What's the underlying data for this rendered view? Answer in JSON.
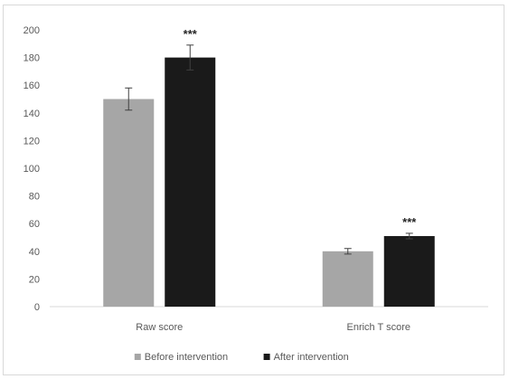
{
  "chart_data": {
    "type": "bar",
    "categories": [
      "Raw score",
      "Enrich T score"
    ],
    "series": [
      {
        "name": "Before intervention",
        "color": "#a6a6a6",
        "values": [
          150,
          40
        ],
        "errors": [
          8,
          2
        ]
      },
      {
        "name": "After intervention",
        "color": "#1a1a1a",
        "values": [
          180,
          51
        ],
        "errors": [
          9,
          2
        ]
      }
    ],
    "annotations": [
      {
        "category_index": 0,
        "series_index": 1,
        "text": "***"
      },
      {
        "category_index": 1,
        "series_index": 1,
        "text": "***"
      }
    ],
    "ylim": [
      0,
      200
    ],
    "yticks": [
      0,
      20,
      40,
      60,
      80,
      100,
      120,
      140,
      160,
      180,
      200
    ],
    "grid": false,
    "legend_position": "bottom",
    "title": "",
    "xlabel": "",
    "ylabel": ""
  }
}
